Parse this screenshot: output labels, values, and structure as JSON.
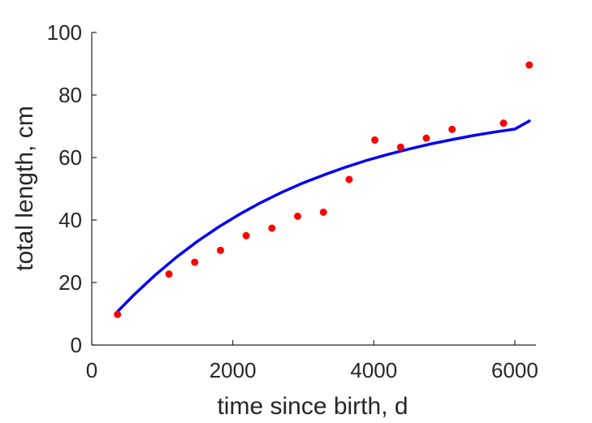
{
  "chart_data": {
    "type": "scatter",
    "title": "",
    "xlabel": "time since birth, d",
    "ylabel": "total length, cm",
    "xlim": [
      0,
      6300
    ],
    "ylim": [
      0,
      100
    ],
    "xticks": [
      0,
      2000,
      4000,
      6000
    ],
    "yticks": [
      0,
      20,
      40,
      60,
      80,
      100
    ],
    "grid": false,
    "legend": "none",
    "colors": {
      "points": "#ff0000",
      "fit": "#0000ee",
      "axis": "#262626"
    },
    "series": [
      {
        "kind": "points",
        "x": [
          365,
          1095,
          1460,
          1825,
          2190,
          2555,
          2920,
          3285,
          3650,
          4015,
          4380,
          4745,
          5110,
          5840,
          6205
        ],
        "y": [
          9.8,
          22.7,
          26.5,
          30.3,
          35.0,
          37.4,
          41.2,
          42.5,
          53.0,
          65.6,
          63.3,
          66.2,
          69.0,
          71.0,
          89.6
        ]
      },
      {
        "kind": "line",
        "x": [
          365,
          600,
          900,
          1200,
          1500,
          1800,
          2100,
          2400,
          2700,
          3000,
          3300,
          3600,
          3900,
          4200,
          4500,
          4800,
          5100,
          5400,
          5700,
          6000,
          6205
        ],
        "y": [
          10.7,
          16.1,
          22.4,
          28.1,
          33.2,
          37.8,
          41.9,
          45.6,
          48.9,
          51.9,
          54.5,
          56.9,
          59.1,
          61.0,
          62.7,
          64.3,
          65.7,
          67.0,
          68.1,
          69.1,
          71.7
        ]
      }
    ]
  }
}
